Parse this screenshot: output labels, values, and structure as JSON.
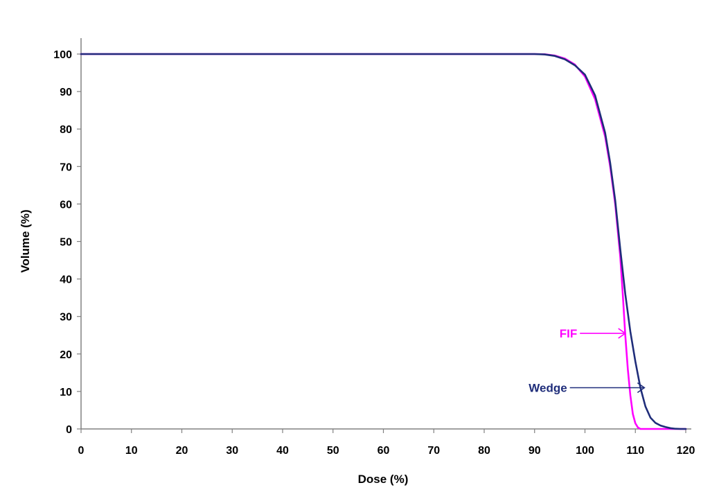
{
  "chart_data": {
    "type": "line",
    "title": "",
    "xlabel": "Dose (%)",
    "ylabel": "Volume (%)",
    "xlim": [
      0,
      120
    ],
    "ylim": [
      0,
      100
    ],
    "xticks": [
      0,
      10,
      20,
      30,
      40,
      50,
      60,
      70,
      80,
      90,
      100,
      110,
      120
    ],
    "yticks": [
      0,
      10,
      20,
      30,
      40,
      50,
      60,
      70,
      80,
      90,
      100
    ],
    "grid": false,
    "legend": "none",
    "series": [
      {
        "name": "FIF",
        "color": "#ff00ff",
        "points": [
          [
            0,
            100
          ],
          [
            90,
            100
          ],
          [
            92,
            99.95
          ],
          [
            94,
            99.6
          ],
          [
            96,
            98.8
          ],
          [
            98,
            97.2
          ],
          [
            100,
            94
          ],
          [
            102,
            88
          ],
          [
            104,
            78
          ],
          [
            105,
            70
          ],
          [
            106,
            60
          ],
          [
            107,
            46
          ],
          [
            107.5,
            36
          ],
          [
            108,
            25
          ],
          [
            108.5,
            16
          ],
          [
            109,
            9
          ],
          [
            109.5,
            4
          ],
          [
            110,
            1.5
          ],
          [
            110.5,
            0.4
          ],
          [
            111,
            0
          ],
          [
            120,
            0
          ]
        ]
      },
      {
        "name": "Wedge",
        "color": "#1f2d7a",
        "points": [
          [
            0,
            100
          ],
          [
            90,
            100
          ],
          [
            92,
            99.9
          ],
          [
            94,
            99.5
          ],
          [
            96,
            98.6
          ],
          [
            98,
            97
          ],
          [
            100,
            94.5
          ],
          [
            102,
            89
          ],
          [
            104,
            79
          ],
          [
            105,
            71
          ],
          [
            106,
            61
          ],
          [
            107,
            48
          ],
          [
            108,
            36
          ],
          [
            109,
            26
          ],
          [
            110,
            18
          ],
          [
            111,
            11
          ],
          [
            112,
            6
          ],
          [
            113,
            3
          ],
          [
            114,
            1.6
          ],
          [
            115,
            0.9
          ],
          [
            116,
            0.5
          ],
          [
            117,
            0.2
          ],
          [
            118,
            0.05
          ],
          [
            119,
            0
          ],
          [
            120,
            0
          ]
        ]
      }
    ],
    "annotations": [
      {
        "text": "FIF",
        "color": "#ff00ff",
        "target": [
          108,
          25.5
        ],
        "label_at": [
          99,
          25.5
        ]
      },
      {
        "text": "Wedge",
        "color": "#1f2d7a",
        "target": [
          111.8,
          11
        ],
        "label_at": [
          97,
          11
        ]
      }
    ]
  }
}
